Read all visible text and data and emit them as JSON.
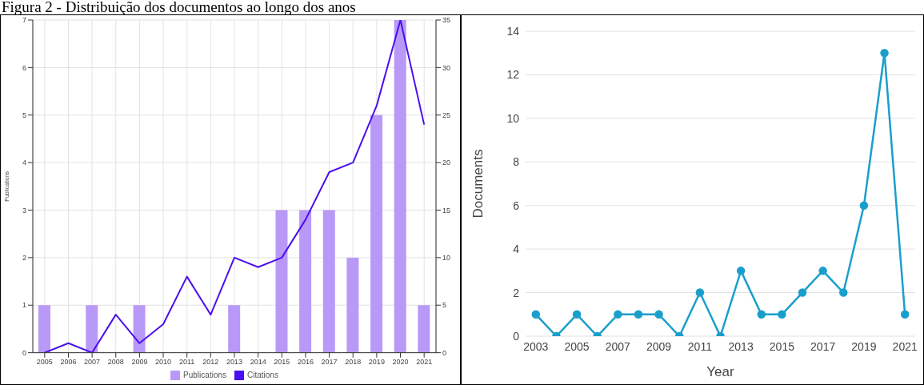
{
  "chart_data": [
    {
      "type": "bar",
      "title": "Figura 2 - Distribuição dos documentos ao longo dos anos",
      "ylabel": "Publications",
      "categories": [
        "2005",
        "2006",
        "2007",
        "2008",
        "2009",
        "2010",
        "2011",
        "2012",
        "2013",
        "2014",
        "2015",
        "2016",
        "2017",
        "2018",
        "2019",
        "2020",
        "2021"
      ],
      "series": [
        {
          "name": "Publications",
          "color": "#b899f7",
          "values": [
            1,
            0,
            1,
            0,
            1,
            0,
            0,
            0,
            1,
            0,
            3,
            3,
            3,
            2,
            5,
            7,
            1
          ]
        },
        {
          "name": "Citations",
          "type": "line",
          "axis": "y2",
          "color": "#4a0ff0",
          "values": [
            0,
            1,
            0,
            4,
            1,
            3,
            8,
            4,
            10,
            9,
            10,
            14,
            19,
            20,
            26,
            35,
            24
          ]
        }
      ],
      "ylim": [
        0,
        7
      ],
      "yticks": [
        0,
        1,
        2,
        3,
        4,
        5,
        6,
        7
      ],
      "y2lim": [
        0,
        35
      ],
      "y2ticks": [
        0,
        5,
        10,
        15,
        20,
        25,
        30,
        35
      ],
      "grid": true,
      "legend": "bottom",
      "marker": "none"
    },
    {
      "type": "line",
      "xlabel": "Year",
      "ylabel": "Documents",
      "x": [
        2003,
        2004,
        2005,
        2006,
        2007,
        2008,
        2009,
        2010,
        2011,
        2012,
        2013,
        2014,
        2015,
        2016,
        2017,
        2018,
        2019,
        2020,
        2021
      ],
      "series": [
        {
          "color": "#1a9fcc",
          "values": [
            1,
            0,
            1,
            0,
            1,
            1,
            1,
            0,
            2,
            0,
            3,
            1,
            1,
            2,
            3,
            2,
            6,
            13,
            1
          ]
        }
      ],
      "xlim": [
        2002.5,
        2021.5
      ],
      "xticks": [
        2003,
        2005,
        2007,
        2009,
        2011,
        2013,
        2015,
        2017,
        2019,
        2021
      ],
      "ylim": [
        0,
        14
      ],
      "yticks": [
        0,
        2,
        4,
        6,
        8,
        10,
        12,
        14
      ],
      "grid": "y",
      "legend": false,
      "marker": "circle",
      "line_style": "solid"
    }
  ]
}
